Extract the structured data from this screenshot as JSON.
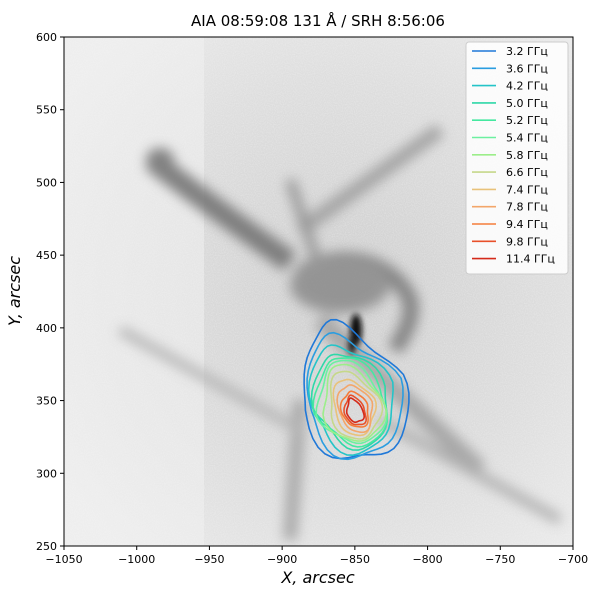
{
  "chart_data": {
    "type": "image-contour",
    "title": "AIA 08:59:08 131 Å  / SRH 8:56:06",
    "xlabel": "X, arcsec",
    "ylabel": "Y, arcsec",
    "xlim": [
      -1050,
      -700
    ],
    "ylim": [
      250,
      600
    ],
    "xticks": [
      -1050,
      -1000,
      -950,
      -900,
      -850,
      -800,
      -750,
      -700
    ],
    "xtick_labels": [
      "−1050",
      "−1000",
      "−950",
      "−900",
      "−850",
      "−800",
      "−750",
      "−700"
    ],
    "yticks": [
      250,
      300,
      350,
      400,
      450,
      500,
      550,
      600
    ],
    "ytick_labels": [
      "250",
      "300",
      "350",
      "400",
      "450",
      "500",
      "550",
      "600"
    ],
    "background": "AIA 131 Å image, inverted grayscale",
    "legend_position": "upper-right",
    "series": [
      {
        "name": "3.2 ГГц",
        "color": "#1f78d8",
        "center": [
          -852,
          355
        ],
        "rx": 46,
        "ry": 46
      },
      {
        "name": "3.6 ГГц",
        "color": "#2a9de0",
        "center": [
          -852,
          353
        ],
        "rx": 42,
        "ry": 41
      },
      {
        "name": "4.2 ГГц",
        "color": "#24c4c8",
        "center": [
          -853,
          352
        ],
        "rx": 37,
        "ry": 36
      },
      {
        "name": "5.0 ГГц",
        "color": "#2ed8a8",
        "center": [
          -853,
          351
        ],
        "rx": 33,
        "ry": 32
      },
      {
        "name": "5.2 ГГц",
        "color": "#45e8a0",
        "center": [
          -853,
          350
        ],
        "rx": 31,
        "ry": 30
      },
      {
        "name": "5.4 ГГц",
        "color": "#6cf0a0",
        "center": [
          -853,
          349
        ],
        "rx": 29,
        "ry": 28
      },
      {
        "name": "5.8 ГГц",
        "color": "#9cee8a",
        "center": [
          -852,
          348
        ],
        "rx": 26,
        "ry": 26
      },
      {
        "name": "6.6 ГГц",
        "color": "#c6d88a",
        "center": [
          -851,
          347
        ],
        "rx": 22,
        "ry": 23
      },
      {
        "name": "7.4 ГГц",
        "color": "#e8c27a",
        "center": [
          -851,
          346
        ],
        "rx": 18,
        "ry": 19
      },
      {
        "name": "7.8 ГГц",
        "color": "#f3a66a",
        "center": [
          -850,
          345
        ],
        "rx": 15,
        "ry": 16
      },
      {
        "name": "9.4 ГГц",
        "color": "#f57c3a",
        "center": [
          -850,
          344
        ],
        "rx": 12,
        "ry": 12
      },
      {
        "name": "9.8 ГГц",
        "color": "#e8502a",
        "center": [
          -850,
          343
        ],
        "rx": 9,
        "ry": 10
      },
      {
        "name": "11.4 ГГц",
        "color": "#d42a1a",
        "center": [
          -850,
          343
        ],
        "rx": 7,
        "ry": 8
      }
    ]
  }
}
